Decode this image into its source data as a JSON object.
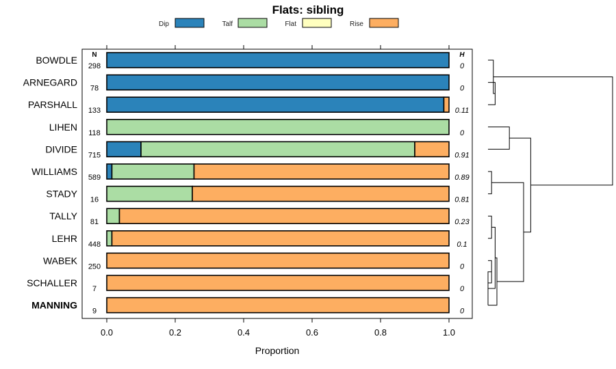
{
  "chart_data": {
    "type": "bar",
    "subtype": "stacked-horizontal-proportion",
    "title": "Flats: sibling",
    "xlabel": "Proportion",
    "xlim": [
      0,
      1
    ],
    "xticks": [
      "0.0",
      "0.2",
      "0.4",
      "0.6",
      "0.8",
      "1.0"
    ],
    "n_header": "N",
    "h_header": "H",
    "legend": [
      {
        "name": "Dip",
        "color": "#2b83ba"
      },
      {
        "name": "Talf",
        "color": "#abdda4"
      },
      {
        "name": "Flat",
        "color": "#ffffbf"
      },
      {
        "name": "Rise",
        "color": "#fdae61"
      }
    ],
    "rows": [
      {
        "label": "BOWDLE",
        "bold": false,
        "n": "298",
        "h": "0",
        "values": [
          1.0,
          0.0,
          0.0,
          0.0
        ]
      },
      {
        "label": "ARNEGARD",
        "bold": false,
        "n": "78",
        "h": "0",
        "values": [
          1.0,
          0.0,
          0.0,
          0.0
        ]
      },
      {
        "label": "PARSHALL",
        "bold": false,
        "n": "133",
        "h": "0.11",
        "values": [
          0.985,
          0.0,
          0.0,
          0.015
        ]
      },
      {
        "label": "LIHEN",
        "bold": false,
        "n": "118",
        "h": "0",
        "values": [
          0.0,
          1.0,
          0.0,
          0.0
        ]
      },
      {
        "label": "DIVIDE",
        "bold": false,
        "n": "715",
        "h": "0.91",
        "values": [
          0.1,
          0.8,
          0.0,
          0.1
        ]
      },
      {
        "label": "WILLIAMS",
        "bold": false,
        "n": "589",
        "h": "0.89",
        "values": [
          0.015,
          0.24,
          0.0,
          0.745
        ]
      },
      {
        "label": "STADY",
        "bold": false,
        "n": "16",
        "h": "0.81",
        "values": [
          0.0,
          0.25,
          0.0,
          0.75
        ]
      },
      {
        "label": "TALLY",
        "bold": false,
        "n": "81",
        "h": "0.23",
        "values": [
          0.0,
          0.037,
          0.0,
          0.963
        ]
      },
      {
        "label": "LEHR",
        "bold": false,
        "n": "448",
        "h": "0.1",
        "values": [
          0.0,
          0.015,
          0.0,
          0.985
        ]
      },
      {
        "label": "WABEK",
        "bold": false,
        "n": "250",
        "h": "0",
        "values": [
          0.0,
          0.0,
          0.0,
          1.0
        ]
      },
      {
        "label": "SCHALLER",
        "bold": false,
        "n": "7",
        "h": "0",
        "values": [
          0.0,
          0.0,
          0.0,
          1.0
        ]
      },
      {
        "label": "MANNING",
        "bold": true,
        "n": "9",
        "h": "0",
        "values": [
          0.0,
          0.0,
          0.0,
          1.0
        ]
      }
    ],
    "dendrogram": {
      "leaves": [
        "BOWDLE",
        "ARNEGARD",
        "PARSHALL",
        "LIHEN",
        "DIVIDE",
        "WILLIAMS",
        "STADY",
        "TALLY",
        "LEHR",
        "WABEK",
        "SCHALLER",
        "MANNING"
      ],
      "merges": [
        {
          "a": "L1",
          "b": "L2",
          "height": 0.02
        },
        {
          "a": "L0",
          "b": "M0",
          "height": 0.015
        },
        {
          "a": "L3",
          "b": "L4",
          "height": 0.06
        },
        {
          "a": "L5",
          "b": "L6",
          "height": 0.01
        },
        {
          "a": "L7",
          "b": "L8",
          "height": 0.01
        },
        {
          "a": "L9",
          "b": "L10",
          "height": 0.01
        },
        {
          "a": "M5",
          "b": "L11",
          "height": 0.0
        },
        {
          "a": "M4",
          "b": "M6",
          "height": 0.02
        },
        {
          "a": "M7",
          "b": "L11",
          "height": 0.025
        },
        {
          "a": "M3",
          "b": "M8",
          "height": 0.1
        },
        {
          "a": "M2",
          "b": "M9",
          "height": 0.12
        },
        {
          "a": "M1",
          "b": "M10",
          "height": 0.35
        }
      ]
    }
  }
}
